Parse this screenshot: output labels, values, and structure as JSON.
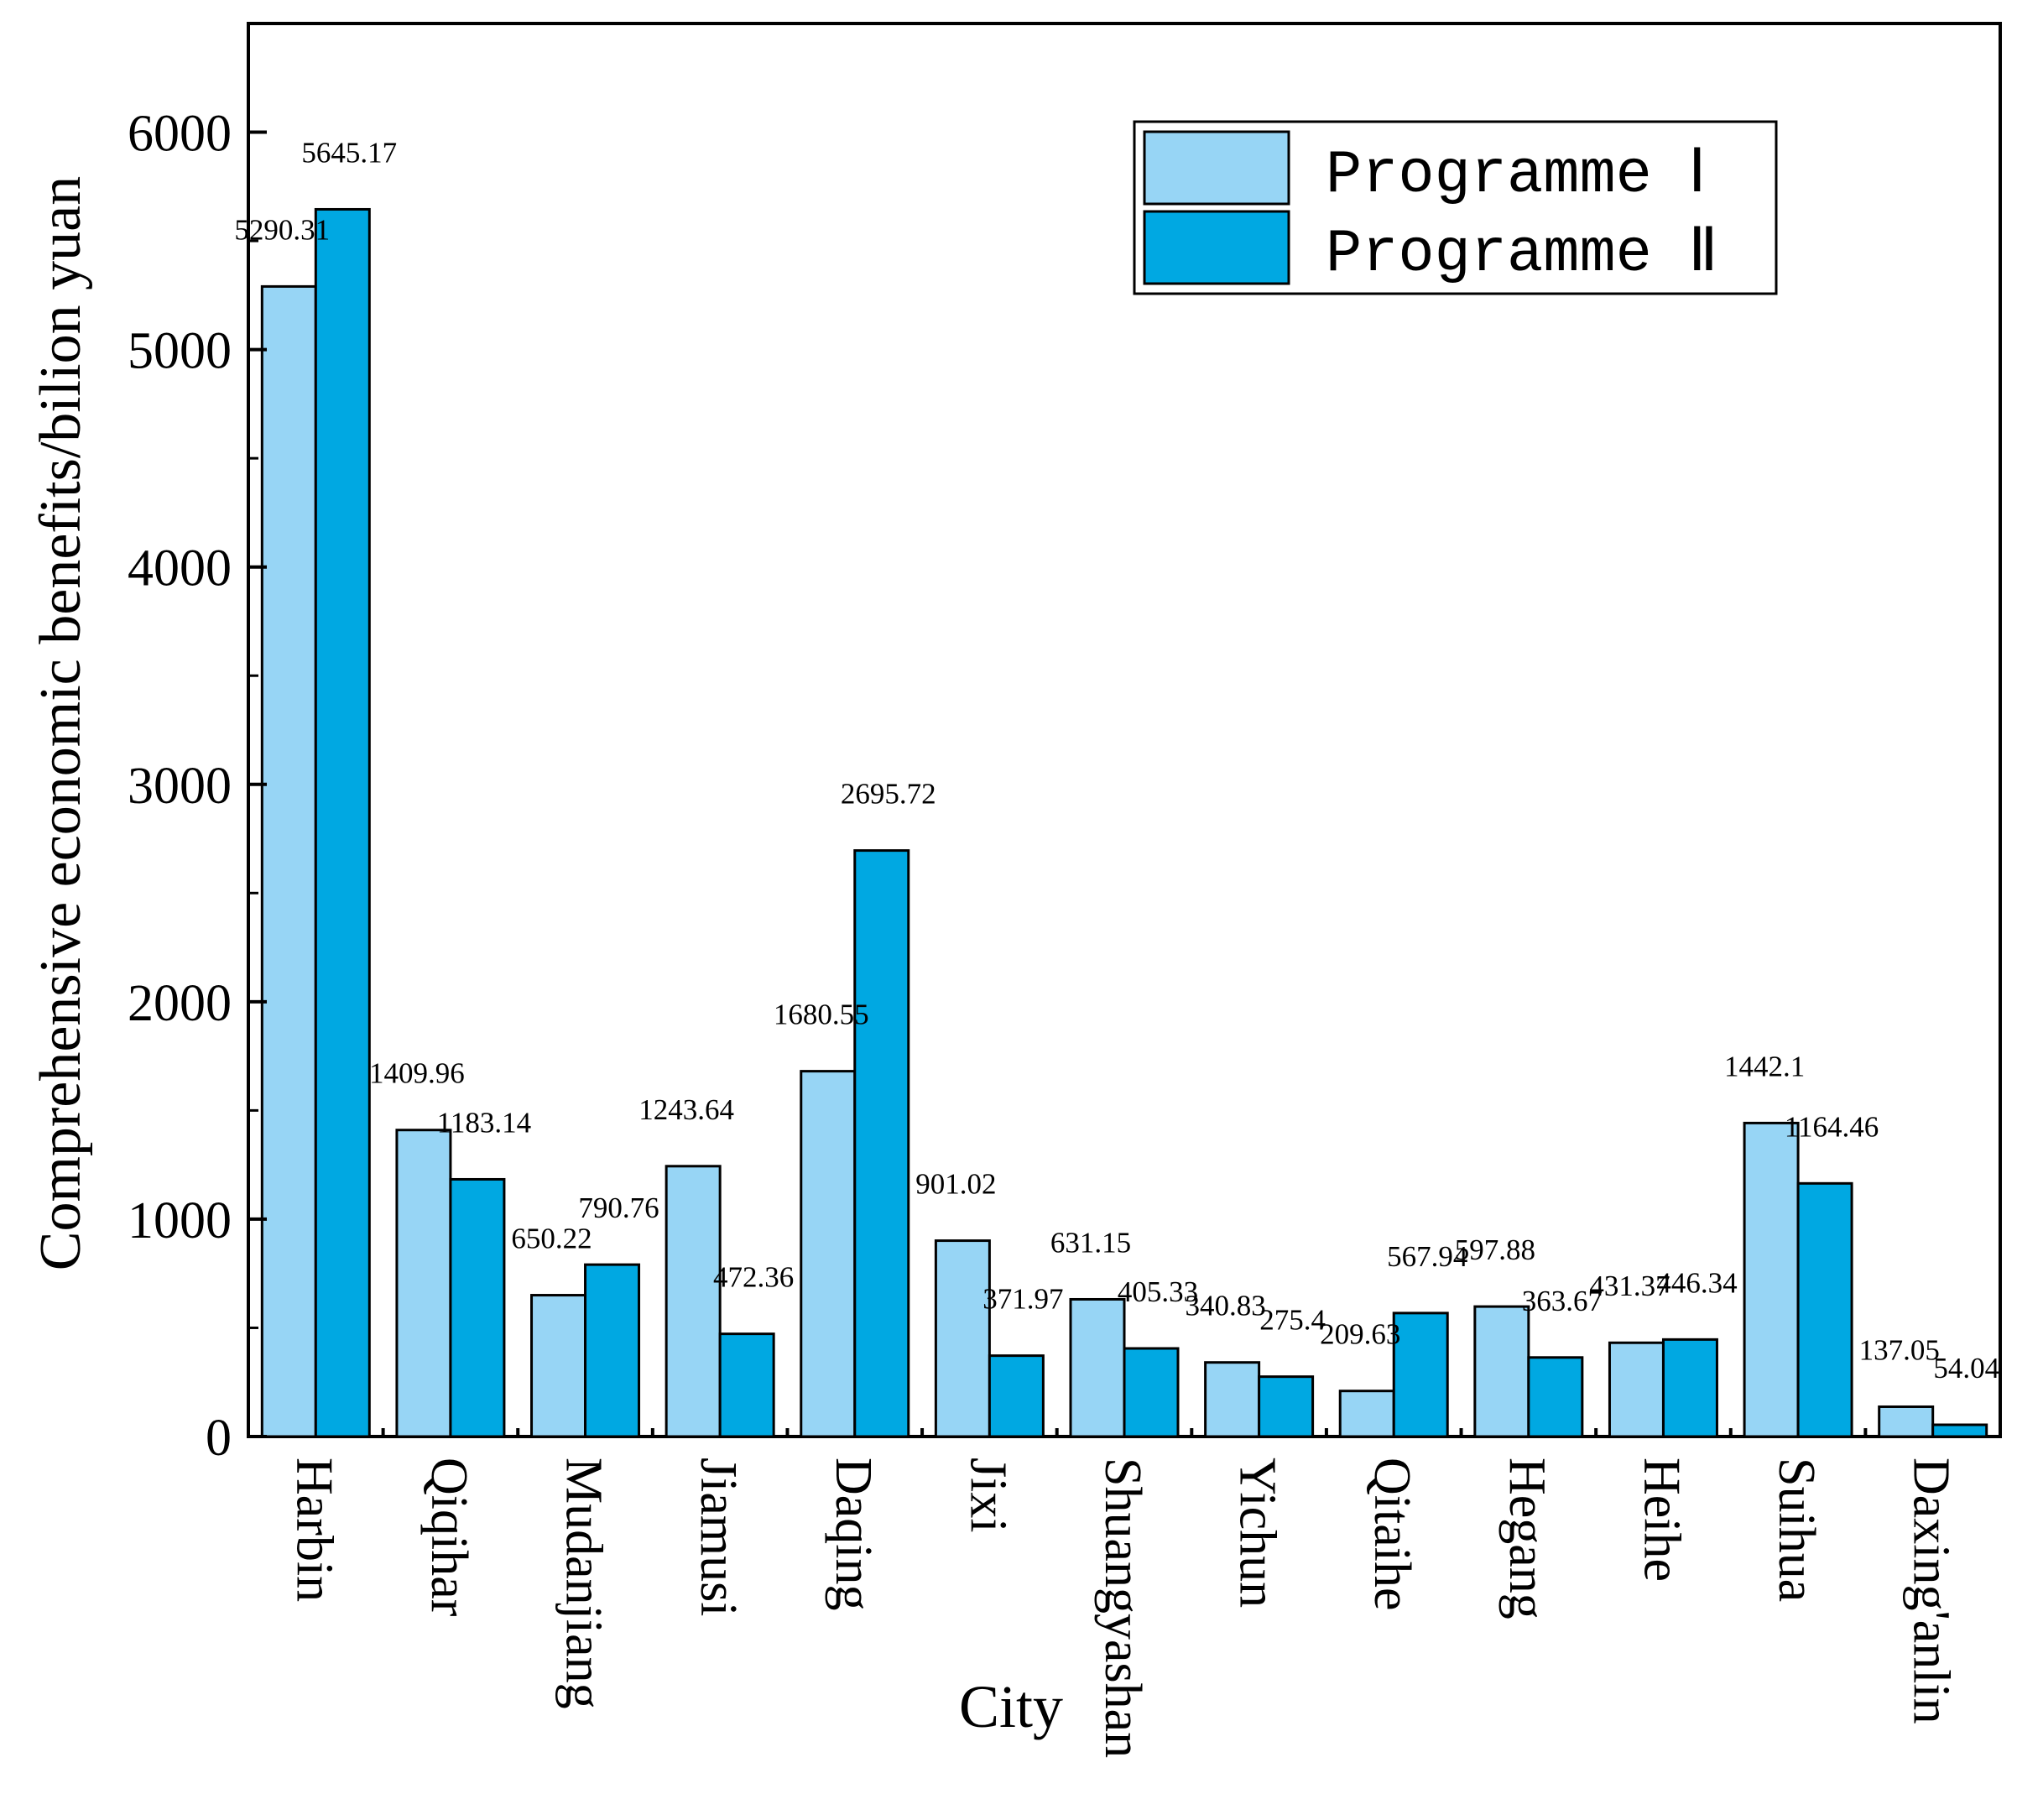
{
  "colors": {
    "programme1": "#97d5f5",
    "programme2": "#00a8e2",
    "stroke": "#000000"
  },
  "chart_data": {
    "type": "bar",
    "title": "",
    "xlabel": "City",
    "ylabel": "Comprehensive economic benefits/bilion yuan",
    "ylim": [
      0,
      6500
    ],
    "yticks": [
      "0",
      "1000",
      "2000",
      "3000",
      "4000",
      "5000",
      "6000"
    ],
    "categories": [
      "Harbin",
      "Qiqihar",
      "Mudanjiang",
      "Jiamusi",
      "Daqing",
      "Jixi",
      "Shuangyashan",
      "Yichun",
      "Qitaihe",
      "Hegang",
      "Heihe",
      "Suihua",
      "Daxing'anlin"
    ],
    "series": [
      {
        "name": "Programme Ⅰ",
        "values": [
          5290.31,
          1409.96,
          650.22,
          1243.64,
          1680.55,
          901.02,
          631.15,
          340.83,
          209.63,
          597.88,
          431.37,
          1442.1,
          137.05
        ],
        "labels": [
          "5290.31",
          "1409.96",
          "650.22",
          "1243.64",
          "1680.55",
          "901.02",
          "631.15",
          "340.83",
          "209.63",
          "597.88",
          "431.37",
          "1442.1",
          "137.05"
        ]
      },
      {
        "name": "Programme Ⅱ",
        "values": [
          5645.17,
          1183.14,
          790.76,
          472.36,
          2695.72,
          371.97,
          405.33,
          275.4,
          567.94,
          363.67,
          446.34,
          1164.46,
          54.04
        ],
        "labels": [
          "5645.17",
          "1183.14",
          "790.76",
          "472.36",
          "2695.72",
          "371.97",
          "405.33",
          "275.4",
          "567.94",
          "363.67",
          "446.34",
          "1164.46",
          "54.04"
        ]
      }
    ],
    "legend": "top-right"
  }
}
